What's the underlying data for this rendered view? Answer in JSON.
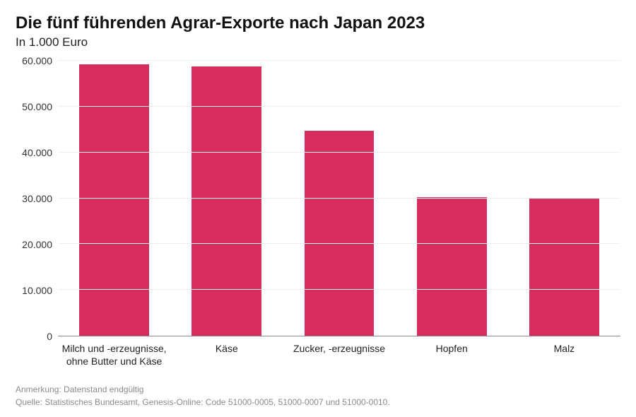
{
  "chart": {
    "type": "bar",
    "title": "Die fünf führenden Agrar-Exporte nach Japan 2023",
    "subtitle": "In 1.000 Euro",
    "categories": [
      "Milch und -erzeugnisse, ohne Butter und Käse",
      "Käse",
      "Zucker, -erzeugnisse",
      "Hopfen",
      "Malz"
    ],
    "values": [
      59300,
      58800,
      44800,
      30300,
      30000
    ],
    "bar_color": "#d62d5e",
    "background_color": "#ffffff",
    "grid_color": "#eeeeee",
    "axis_line_color": "#888888",
    "text_color": "#222222",
    "ylim": [
      0,
      60000
    ],
    "ytick_step": 10000,
    "ytick_labels": [
      "0",
      "10.000",
      "20.000",
      "30.000",
      "40.000",
      "50.000",
      "60.000"
    ],
    "bar_width_pct": 62,
    "title_fontsize": 24,
    "subtitle_fontsize": 17,
    "tick_fontsize": 14,
    "footer_fontsize": 12
  },
  "footer": {
    "note": "Anmerkung: Datenstand endgültig",
    "source": "Quelle: Statistisches Bundesamt, Genesis-Online: Code 51000-0005, 51000-0007 und 51000-0010."
  }
}
